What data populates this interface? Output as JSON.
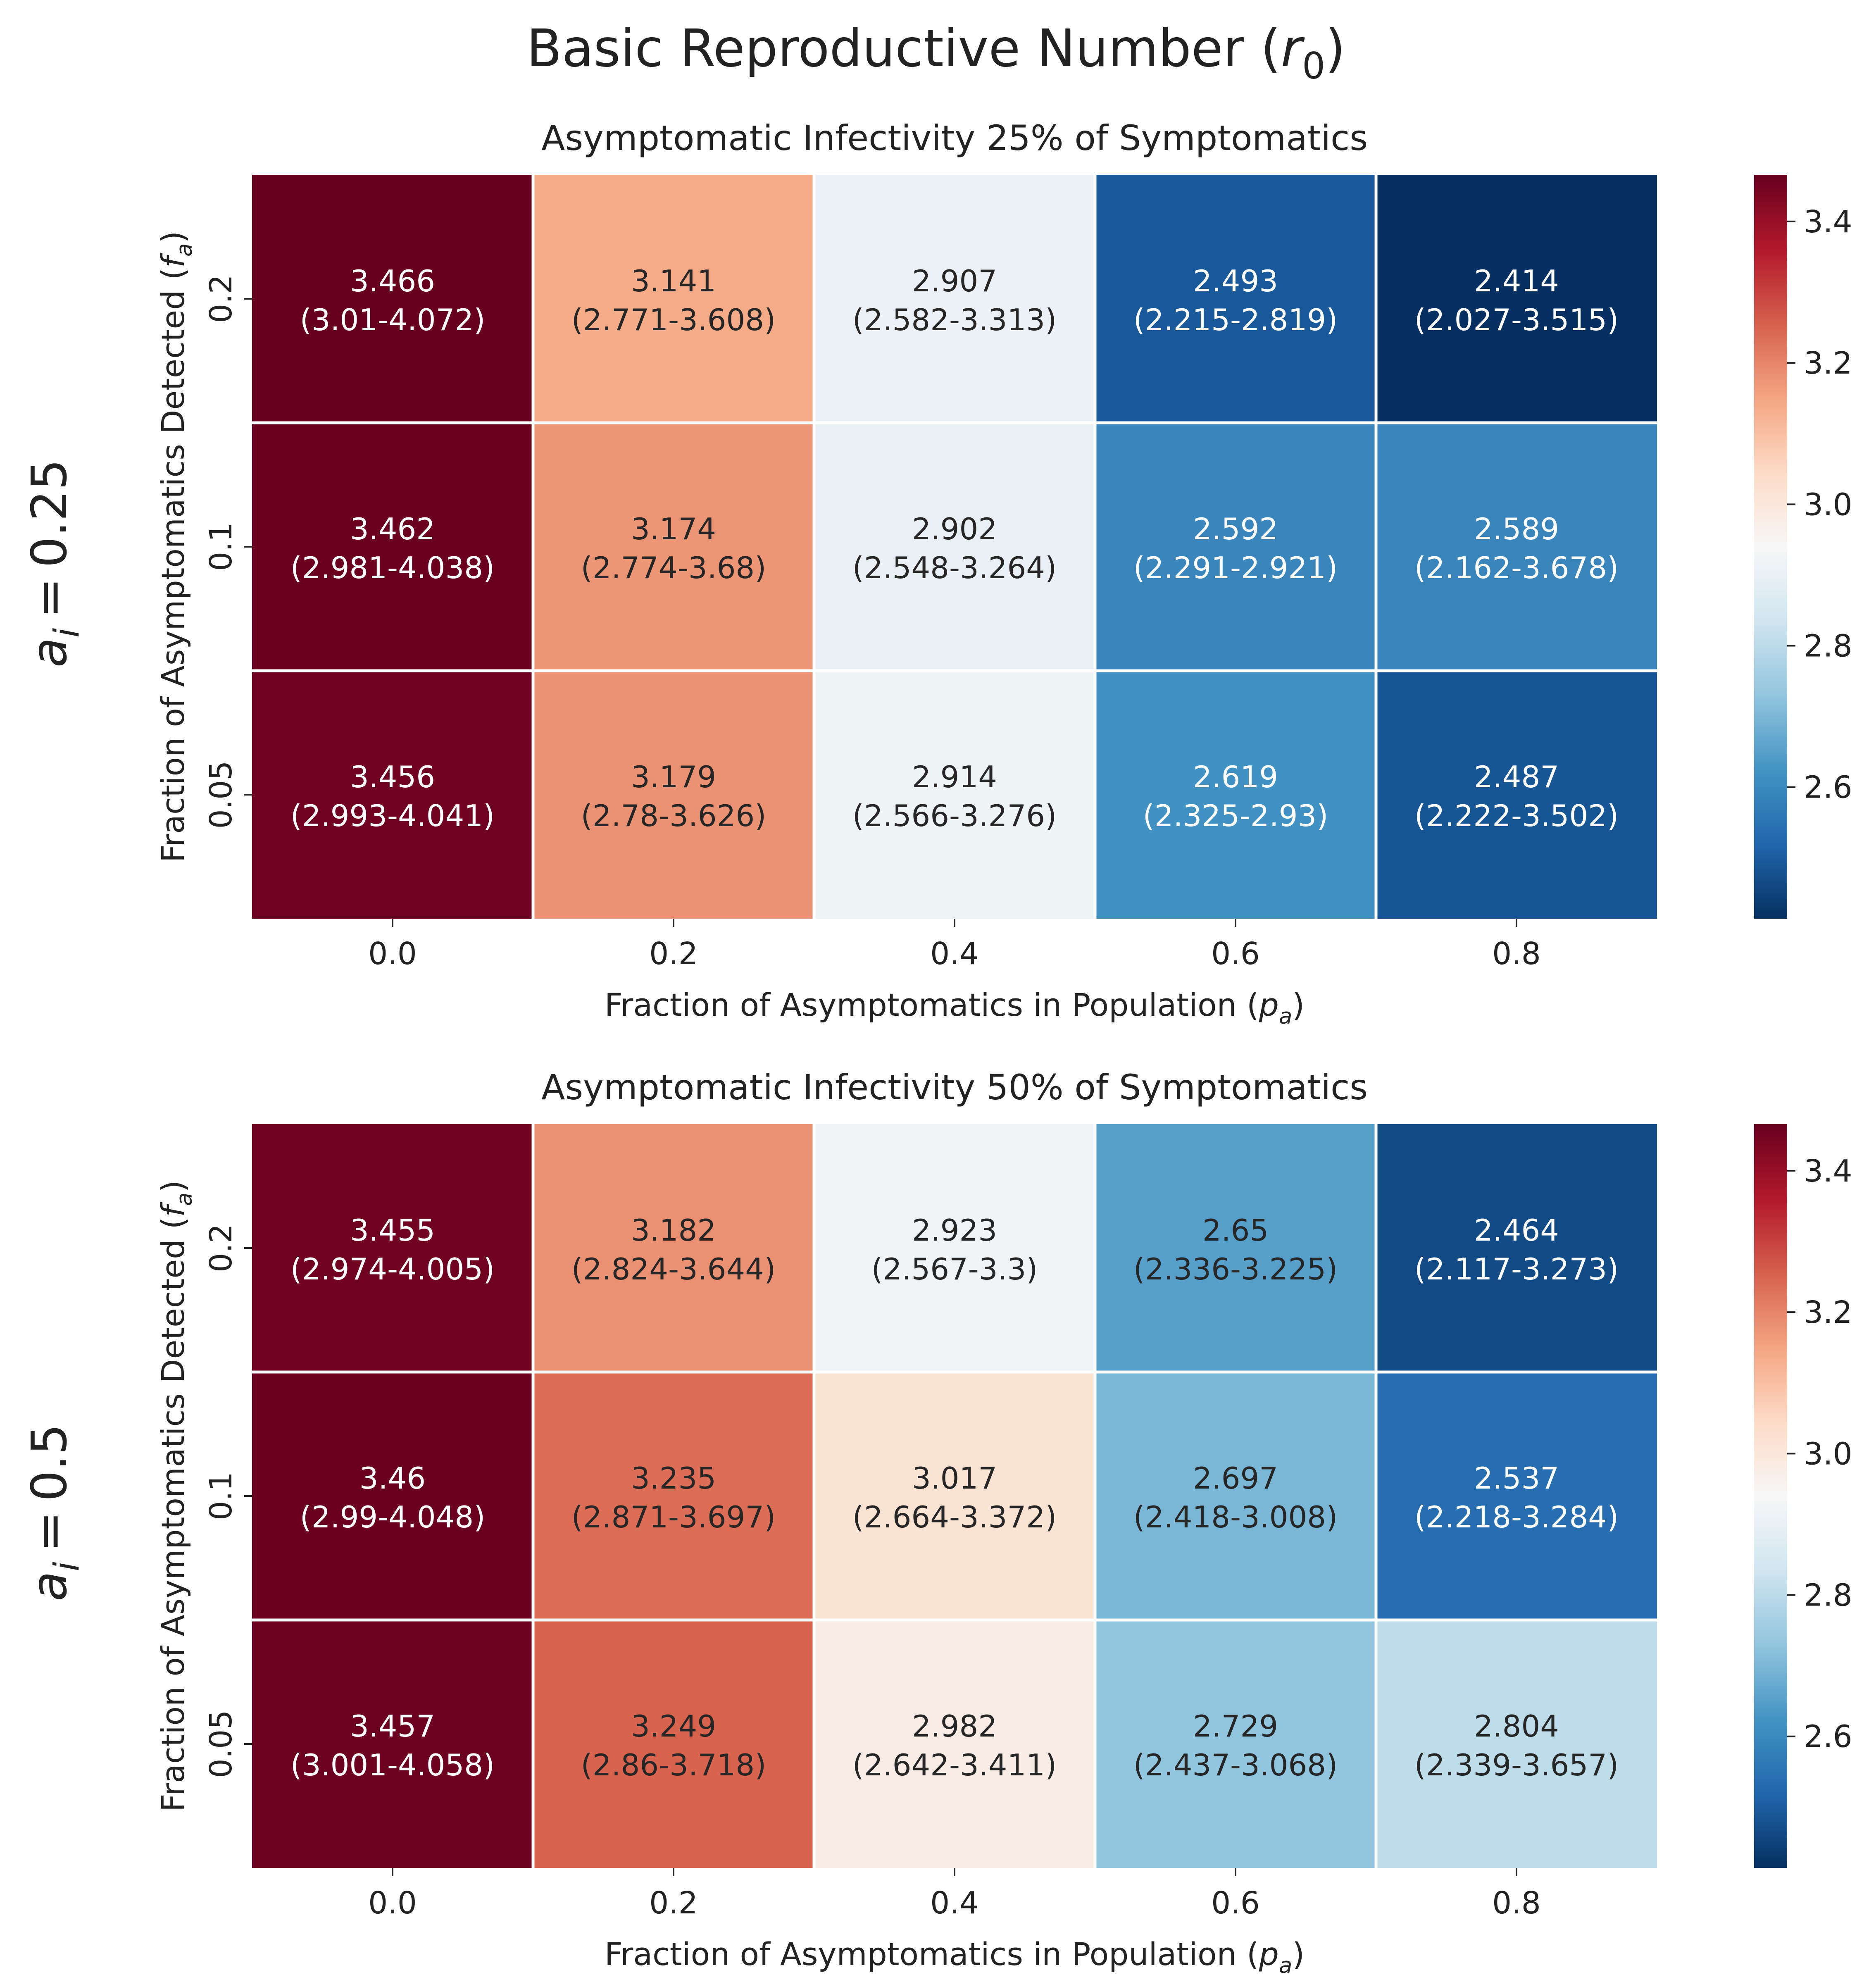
{
  "figure": {
    "title": "Basic Reproductive Number (r0)"
  },
  "chart_data": [
    {
      "type": "heatmap",
      "title": "Asymptomatic Infectivity 25% of Symptomatics",
      "row_group_label": "a_i = 0.25",
      "xlabel": "Fraction of Asymptomatics in Population (p_a)",
      "ylabel": "Fraction of Asymptomatics Detected (f_a)",
      "x_categories": [
        "0.0",
        "0.2",
        "0.4",
        "0.6",
        "0.8"
      ],
      "y_categories": [
        "0.2",
        "0.1",
        "0.05"
      ],
      "values": [
        [
          3.466,
          3.141,
          2.907,
          2.493,
          2.414
        ],
        [
          3.462,
          3.174,
          2.902,
          2.592,
          2.589
        ],
        [
          3.456,
          3.179,
          2.914,
          2.619,
          2.487
        ]
      ],
      "intervals": [
        [
          "(3.01-4.072)",
          "(2.771-3.608)",
          "(2.582-3.313)",
          "(2.215-2.819)",
          "(2.027-3.515)"
        ],
        [
          "(2.981-4.038)",
          "(2.774-3.68)",
          "(2.548-3.264)",
          "(2.291-2.921)",
          "(2.162-3.678)"
        ],
        [
          "(2.993-4.041)",
          "(2.78-3.626)",
          "(2.566-3.276)",
          "(2.325-2.93)",
          "(2.222-3.502)"
        ]
      ],
      "colorbar": {
        "colormap": "RdBu_r",
        "range": [
          2.414,
          3.466
        ],
        "ticks": [
          "2.6",
          "2.8",
          "3.0",
          "3.2",
          "3.4"
        ]
      }
    },
    {
      "type": "heatmap",
      "title": "Asymptomatic Infectivity 50% of Symptomatics",
      "row_group_label": "a_i = 0.5",
      "xlabel": "Fraction of Asymptomatics in Population (p_a)",
      "ylabel": "Fraction of Asymptomatics Detected (f_a)",
      "x_categories": [
        "0.0",
        "0.2",
        "0.4",
        "0.6",
        "0.8"
      ],
      "y_categories": [
        "0.2",
        "0.1",
        "0.05"
      ],
      "values": [
        [
          3.455,
          3.182,
          2.923,
          2.65,
          2.464
        ],
        [
          3.46,
          3.235,
          3.017,
          2.697,
          2.537
        ],
        [
          3.457,
          3.249,
          2.982,
          2.729,
          2.804
        ]
      ],
      "intervals": [
        [
          "(2.974-4.005)",
          "(2.824-3.644)",
          "(2.567-3.3)",
          "(2.336-3.225)",
          "(2.117-3.273)"
        ],
        [
          "(2.99-4.048)",
          "(2.871-3.697)",
          "(2.664-3.372)",
          "(2.418-3.008)",
          "(2.218-3.284)"
        ],
        [
          "(3.001-4.058)",
          "(2.86-3.718)",
          "(2.642-3.411)",
          "(2.437-3.068)",
          "(2.339-3.657)"
        ]
      ],
      "colorbar": {
        "colormap": "RdBu_r",
        "range": [
          2.414,
          3.466
        ],
        "ticks": [
          "2.6",
          "2.8",
          "3.0",
          "3.2",
          "3.4"
        ]
      }
    }
  ]
}
